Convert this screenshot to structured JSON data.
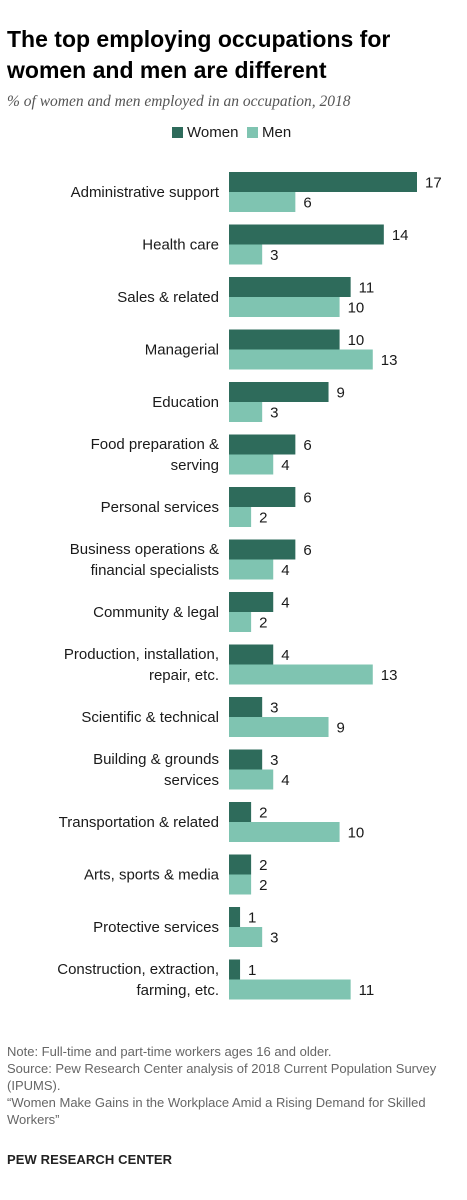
{
  "title": "The top employing occupations for women and men are different",
  "subtitle": "% of women and men employed in an occupation, 2018",
  "colors": {
    "women": "#2e6b5b",
    "men": "#7fc4b1",
    "text": "#1a1a1a"
  },
  "chart_data": {
    "type": "bar",
    "orientation": "horizontal",
    "categories": [
      [
        "Administrative support"
      ],
      [
        "Health care"
      ],
      [
        "Sales & related"
      ],
      [
        "Managerial"
      ],
      [
        "Education"
      ],
      [
        "Food preparation &",
        "serving"
      ],
      [
        "Personal services"
      ],
      [
        "Business operations &",
        "financial specialists"
      ],
      [
        "Community & legal"
      ],
      [
        "Production, installation,",
        "repair, etc."
      ],
      [
        "Scientific & technical"
      ],
      [
        "Building & grounds",
        "services"
      ],
      [
        "Transportation & related"
      ],
      [
        "Arts, sports & media"
      ],
      [
        "Protective services"
      ],
      [
        "Construction, extraction,",
        "farming, etc."
      ]
    ],
    "series": [
      {
        "name": "Women",
        "values": [
          17,
          14,
          11,
          10,
          9,
          6,
          6,
          6,
          4,
          4,
          3,
          3,
          2,
          2,
          1,
          1
        ]
      },
      {
        "name": "Men",
        "values": [
          6,
          3,
          10,
          13,
          3,
          4,
          2,
          4,
          2,
          13,
          9,
          4,
          10,
          2,
          3,
          11
        ]
      }
    ],
    "xlim": [
      0,
      17
    ],
    "legend_position": "top",
    "grid": false
  },
  "notes": [
    "Note: Full-time and part-time workers ages 16 and older.",
    "Source: Pew Research Center analysis of 2018 Current Population Survey (IPUMS).",
    "“Women Make Gains in the Workplace Amid a Rising Demand for Skilled Workers”"
  ],
  "footer": "PEW RESEARCH CENTER"
}
